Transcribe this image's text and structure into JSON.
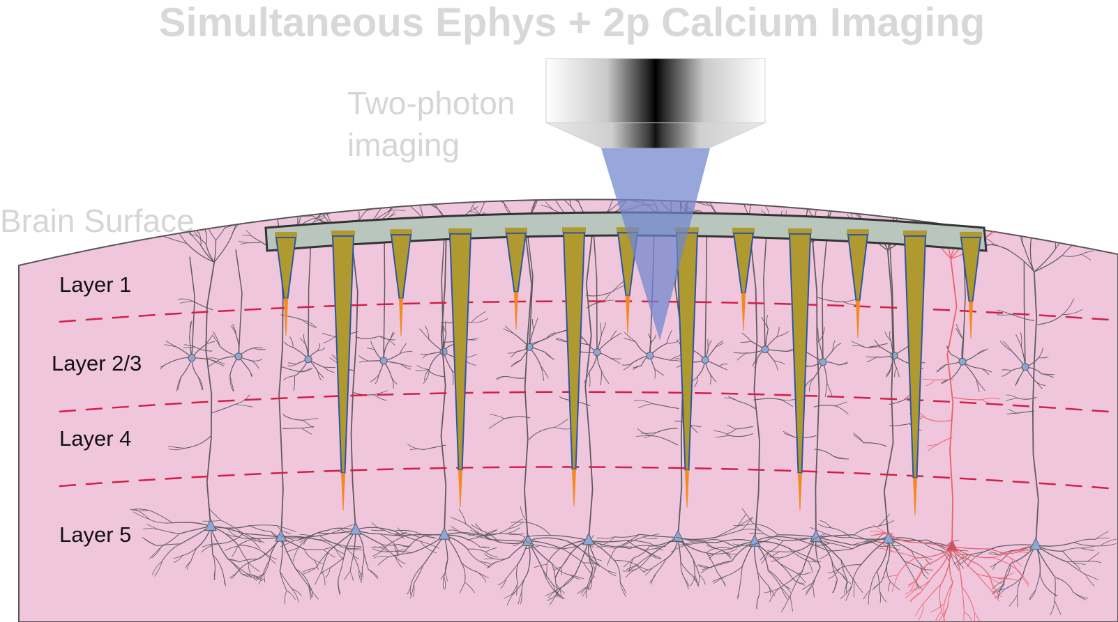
{
  "title": "Simultaneous Ephys + 2p Calcium Imaging",
  "imaging_label_line1": "Two-photon",
  "imaging_label_line2": "imaging",
  "surface_label": "Brain Surface",
  "layers": [
    "Layer 1",
    "Layer 2/3",
    "Layer 4",
    "Layer 5"
  ],
  "colors": {
    "tissue": "#efc6dc",
    "tissue_outline": "#555555",
    "window": "#b9c6bd",
    "window_frame": "#333333",
    "boundary": "#d21f45",
    "neuron": "#5f5a60",
    "neuron_highlight": "#ef5d6c",
    "soma": "#8aa8d8",
    "shank": "#b09a2f",
    "shank_edge": "#2c55a4",
    "tip": "#f28a1e",
    "beam": "#6f85cf",
    "title_text": "#d7d9d8",
    "label_text": "#d4d6d6"
  },
  "probes": [
    {
      "depth": "Layer 2/3"
    },
    {
      "depth": "Layer 5"
    },
    {
      "depth": "Layer 2/3"
    },
    {
      "depth": "Layer 5"
    },
    {
      "depth": "Layer 2/3"
    },
    {
      "depth": "Layer 5"
    },
    {
      "depth": "Layer 2/3"
    },
    {
      "depth": "Layer 5"
    },
    {
      "depth": "Layer 2/3"
    },
    {
      "depth": "Layer 5"
    },
    {
      "depth": "Layer 2/3"
    },
    {
      "depth": "Layer 5"
    },
    {
      "depth": "Layer 2/3"
    }
  ]
}
